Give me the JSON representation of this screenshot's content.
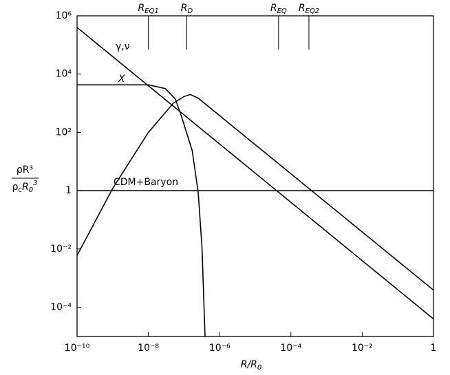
{
  "chart_data": {
    "type": "line",
    "log_x": true,
    "log_y": true,
    "x_label": "R/R",
    "x_label_sub": "0",
    "y_label_numerator": "ρR³",
    "y_label_denominator": [
      "ρ",
      "c",
      "R",
      "0",
      "3"
    ],
    "xlim": [
      1e-10,
      1
    ],
    "xticks": [
      {
        "value": 1e-10,
        "label": "10⁻¹⁰"
      },
      {
        "value": 1e-08,
        "label": "10⁻⁸"
      },
      {
        "value": 1e-06,
        "label": "10⁻⁶"
      },
      {
        "value": 0.0001,
        "label": "10⁻⁴"
      },
      {
        "value": 0.01,
        "label": "10⁻²"
      },
      1
    ],
    "ylim": [
      1e-05,
      1000000.0
    ],
    "yticks": [
      {
        "value": 0.0001,
        "label": "10⁻⁴"
      },
      {
        "value": 0.01,
        "label": "10⁻²"
      },
      1,
      {
        "value": 100,
        "label": "10²"
      },
      {
        "value": 10000,
        "label": "10⁴"
      },
      {
        "value": 1000000,
        "label": "10⁶"
      }
    ],
    "markers": [
      {
        "label": "R",
        "sub": "EQ1",
        "x": 1e-08
      },
      {
        "label": "R",
        "sub": "D",
        "x": 1.2e-07
      },
      {
        "label": "R",
        "sub": "EQ",
        "x": 4.5e-05
      },
      {
        "label": "R",
        "sub": "EQ2",
        "x": 0.00032
      }
    ],
    "series": [
      {
        "name": "γ,ν",
        "color": "#000000",
        "x": [
          1e-10,
          1
        ],
        "values": [
          400000,
          4e-05
        ]
      },
      {
        "name": "X",
        "color": "#000000",
        "x": [
          1e-10,
          1e-08,
          3e-08,
          5.7e-08,
          8.5e-08,
          1.7e-07,
          2.5e-07,
          3.2e-07,
          3.9e-07
        ],
        "values": [
          4300,
          4300,
          3200,
          1400,
          360,
          24,
          0.9,
          0.011,
          1e-05
        ]
      },
      {
        "name": "CDM+Baryon",
        "color": "#000000",
        "x": [
          1e-10,
          1
        ],
        "values": [
          1,
          1
        ]
      },
      {
        "color": "#000000",
        "x": [
          1e-10,
          1e-09,
          1e-08,
          5e-08,
          1e-07,
          1.5e-07,
          2.5e-07,
          1
        ],
        "values": [
          0.006,
          1.2,
          100,
          1000,
          1700,
          2000,
          1500,
          0.00039
        ]
      }
    ]
  }
}
